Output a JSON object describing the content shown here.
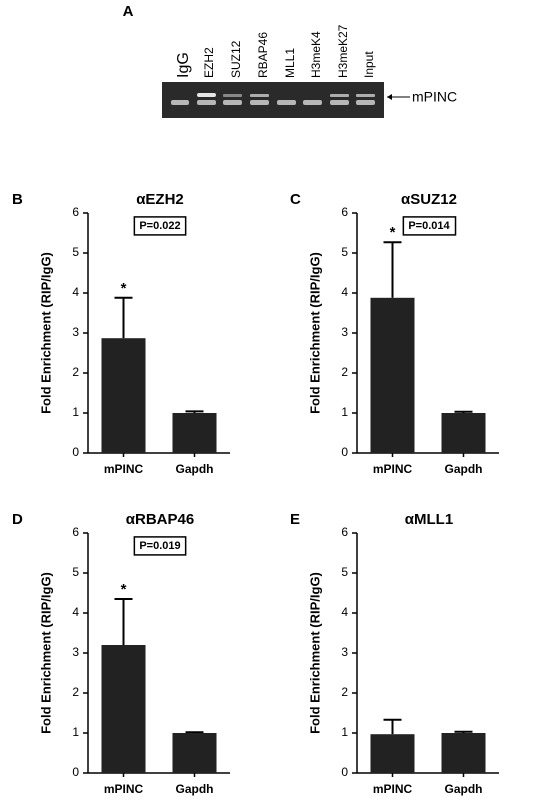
{
  "gel": {
    "panel_label": "A",
    "lanes": [
      "IgG",
      "EZH2",
      "SUZ12",
      "RBAP46",
      "MLL1",
      "H3meK4",
      "H3meK27",
      "Input"
    ],
    "band_label": "mPINC"
  },
  "chart_data": [
    {
      "type": "bar",
      "panel_label": "B",
      "title": "αEZH2",
      "p_value_label": "P=0.022",
      "ylabel": "Fold Enrichment (RIP/IgG)",
      "categories": [
        "mPINC",
        "Gapdh"
      ],
      "values": [
        2.87,
        1.0
      ],
      "errors": [
        1.01,
        0.04
      ],
      "significance_marks": [
        "*",
        null
      ],
      "color": "#222222",
      "ylim": [
        0,
        6
      ],
      "yticks": [
        0,
        1,
        2,
        3,
        4,
        5,
        6
      ]
    },
    {
      "type": "bar",
      "panel_label": "C",
      "title": "αSUZ12",
      "p_value_label": "P=0.014",
      "ylabel": "Fold Enrichment (RIP/IgG)",
      "categories": [
        "mPINC",
        "Gapdh"
      ],
      "values": [
        3.88,
        1.0
      ],
      "errors": [
        1.39,
        0.03
      ],
      "significance_marks": [
        "*",
        null
      ],
      "color": "#222222",
      "ylim": [
        0,
        6
      ],
      "yticks": [
        0,
        1,
        2,
        3,
        4,
        5,
        6
      ]
    },
    {
      "type": "bar",
      "panel_label": "D",
      "title": "αRBAP46",
      "p_value_label": "P=0.019",
      "ylabel": "Fold Enrichment (RIP/IgG)",
      "categories": [
        "mPINC",
        "Gapdh"
      ],
      "values": [
        3.2,
        1.0
      ],
      "errors": [
        1.15,
        0.02
      ],
      "significance_marks": [
        "*",
        null
      ],
      "color": "#222222",
      "ylim": [
        0,
        6
      ],
      "yticks": [
        0,
        1,
        2,
        3,
        4,
        5,
        6
      ]
    },
    {
      "type": "bar",
      "panel_label": "E",
      "title": "αMLL1",
      "ylabel": "Fold Enrichment (RIP/IgG)",
      "categories": [
        "mPINC",
        "Gapdh"
      ],
      "values": [
        0.97,
        1.0
      ],
      "errors": [
        0.36,
        0.03
      ],
      "color": "#222222",
      "ylim": [
        0,
        6
      ],
      "yticks": [
        0,
        1,
        2,
        3,
        4,
        5,
        6
      ]
    }
  ]
}
